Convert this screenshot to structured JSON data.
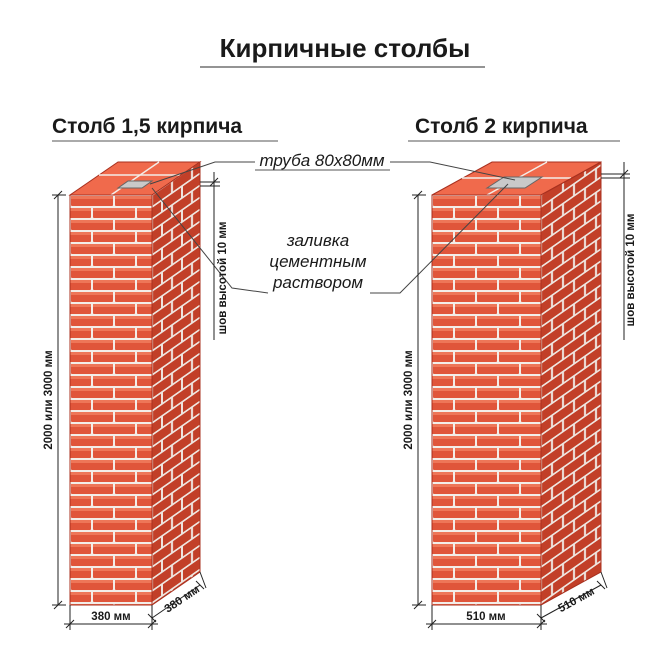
{
  "title": "Кирпичные столбы",
  "pillars": [
    {
      "label": "Столб 1,5 кирпича",
      "width": "380 мм",
      "depth": "380 мм",
      "height": "2000 или 3000 мм",
      "seam": "шов высотой 10 мм"
    },
    {
      "label": "Столб 2 кирпича",
      "width": "510 мм",
      "depth": "510 мм",
      "height": "2000 или 3000 мм",
      "seam": "шов высотой 10 мм"
    }
  ],
  "notes": {
    "pipe": "труба 80х80мм",
    "fill_line1": "заливка",
    "fill_line2": "цементным",
    "fill_line3": "раствором"
  },
  "colors": {
    "brick": "#e0553a",
    "brick_light": "#f07a5a",
    "brick_dark": "#a8301f",
    "mortar": "#f3ede8",
    "pipe": "#c9c9c9"
  }
}
